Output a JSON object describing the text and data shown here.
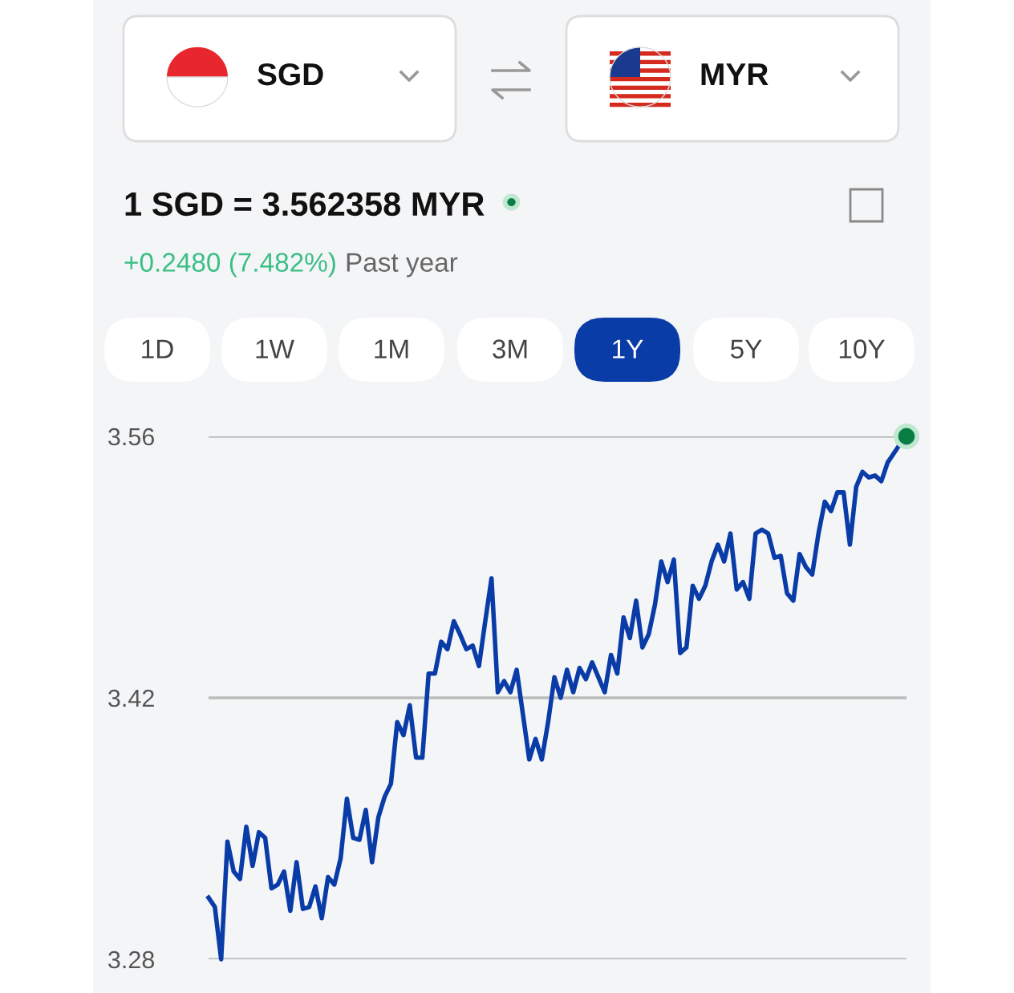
{
  "chart_data": {
    "type": "line",
    "title": "1 SGD = 3.562358 MYR",
    "annotations": [
      "SGD",
      "MYR",
      "+0.2480 (7.482%)",
      "Past year",
      "1D",
      "1W",
      "1M",
      "3M",
      "1Y",
      "5Y",
      "10Y"
    ],
    "categories": [
      null,
      null,
      null,
      null,
      null,
      null,
      null,
      null,
      null,
      null,
      null,
      null,
      null,
      null,
      null,
      null,
      null,
      null,
      null,
      null,
      null,
      null,
      null,
      null,
      null,
      null,
      null,
      null,
      null,
      null,
      null,
      null,
      null,
      null,
      null,
      null,
      null,
      null,
      null,
      null,
      null,
      null,
      null,
      null,
      null,
      null,
      null,
      null,
      null,
      null,
      null,
      null,
      null,
      null,
      null,
      null,
      null,
      null,
      null,
      null,
      null,
      null,
      null,
      null,
      null,
      null,
      null,
      null,
      null,
      null,
      null,
      null,
      null,
      null,
      null,
      null,
      null,
      null,
      null,
      null,
      null,
      null,
      null,
      null,
      null,
      null,
      null,
      null,
      null,
      null,
      null,
      null,
      null,
      null,
      null,
      null,
      null,
      null,
      null,
      null,
      null,
      null,
      null,
      null,
      null,
      null,
      null,
      null,
      null,
      null,
      null,
      null
    ],
    "series": [
      {
        "color": "#0a3ca8",
        "values": [
          3.313,
          3.308,
          3.28,
          3.343,
          3.327,
          3.323,
          3.351,
          3.33,
          3.348,
          3.345,
          3.318,
          3.32,
          3.327,
          3.306,
          3.332,
          3.307,
          3.308,
          3.319,
          3.302,
          3.324,
          3.32,
          3.334,
          3.366,
          3.345,
          3.344,
          3.36,
          3.332,
          3.356,
          3.367,
          3.374,
          3.407,
          3.4,
          3.416,
          3.388,
          3.388,
          3.433,
          3.433,
          3.45,
          3.446,
          3.461,
          3.454,
          3.446,
          3.448,
          3.437,
          3.461,
          3.484,
          3.423,
          3.429,
          3.423,
          3.435,
          3.411,
          3.387,
          3.398,
          3.387,
          3.407,
          3.431,
          3.42,
          3.435,
          3.423,
          3.436,
          3.43,
          3.439,
          3.431,
          3.423,
          3.443,
          3.433,
          3.463,
          3.452,
          3.472,
          3.447,
          3.454,
          3.47,
          3.493,
          3.482,
          3.494,
          3.444,
          3.447,
          3.48,
          3.473,
          3.48,
          3.493,
          3.502,
          3.493,
          3.508,
          3.478,
          3.482,
          3.473,
          3.508,
          3.51,
          3.508,
          3.495,
          3.496,
          3.476,
          3.472,
          3.497,
          3.49,
          3.486,
          3.508,
          3.525,
          3.52,
          3.53,
          3.53,
          3.502,
          3.533,
          3.541,
          3.538,
          3.539,
          3.536,
          3.546,
          3.551,
          3.556,
          3.56
        ]
      },
      {
        "type": "scatter",
        "color": "#0a7d44",
        "values": [
          null,
          null,
          null,
          null,
          null,
          null,
          null,
          null,
          null,
          null,
          null,
          null,
          null,
          null,
          null,
          null,
          null,
          null,
          null,
          null,
          null,
          null,
          null,
          null,
          null,
          null,
          null,
          null,
          null,
          null,
          null,
          null,
          null,
          null,
          null,
          null,
          null,
          null,
          null,
          null,
          null,
          null,
          null,
          null,
          null,
          null,
          null,
          null,
          null,
          null,
          null,
          null,
          null,
          null,
          null,
          null,
          null,
          null,
          null,
          null,
          null,
          null,
          null,
          null,
          null,
          null,
          null,
          null,
          null,
          null,
          null,
          null,
          null,
          null,
          null,
          null,
          null,
          null,
          null,
          null,
          null,
          null,
          null,
          null,
          null,
          null,
          null,
          null,
          null,
          null,
          null,
          null,
          null,
          null,
          null,
          null,
          null,
          null,
          null,
          null,
          null,
          null,
          null,
          null,
          null,
          null,
          null,
          null,
          null,
          null,
          null,
          3.56
        ]
      }
    ],
    "ylim": [
      3.28,
      3.56
    ],
    "yticks": [
      3.28,
      3.42,
      3.56
    ],
    "grid": "y",
    "tick_labels": "y"
  }
}
